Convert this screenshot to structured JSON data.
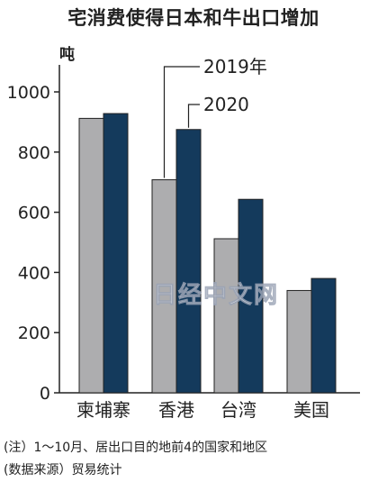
{
  "chart_data": {
    "type": "bar",
    "title": "宅消费使得日本和牛出口增加",
    "ylabel": "吨",
    "ylim": [
      0,
      1100
    ],
    "yticks": [
      0,
      200,
      400,
      600,
      800,
      1000
    ],
    "categories": [
      "柬埔寨",
      "香港",
      "台湾",
      "美国"
    ],
    "series": [
      {
        "name": "2019年",
        "color": "#adadaf",
        "values": [
          912,
          708,
          512,
          340
        ]
      },
      {
        "name": "2020",
        "color": "#143a5c",
        "values": [
          928,
          875,
          643,
          380
        ]
      }
    ],
    "grid": false,
    "legend": "callout labels above 香港 bars"
  },
  "watermark": "日经中文网",
  "notes": {
    "note1": "(注）1～10月、居出口目的地前4的国家和地区",
    "note2": "(数据来源）贸易统计"
  }
}
